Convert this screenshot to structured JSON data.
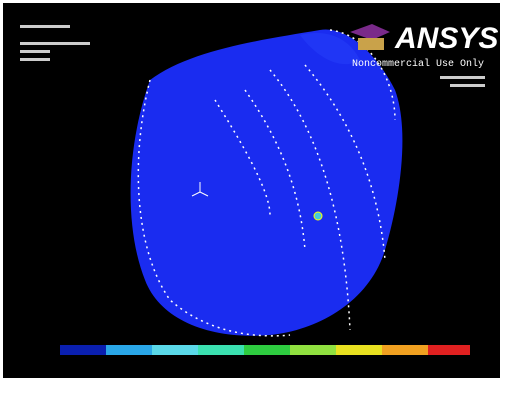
{
  "header": {
    "logo": "ANSYS",
    "notice": "Noncommercial Use Only"
  }
}
